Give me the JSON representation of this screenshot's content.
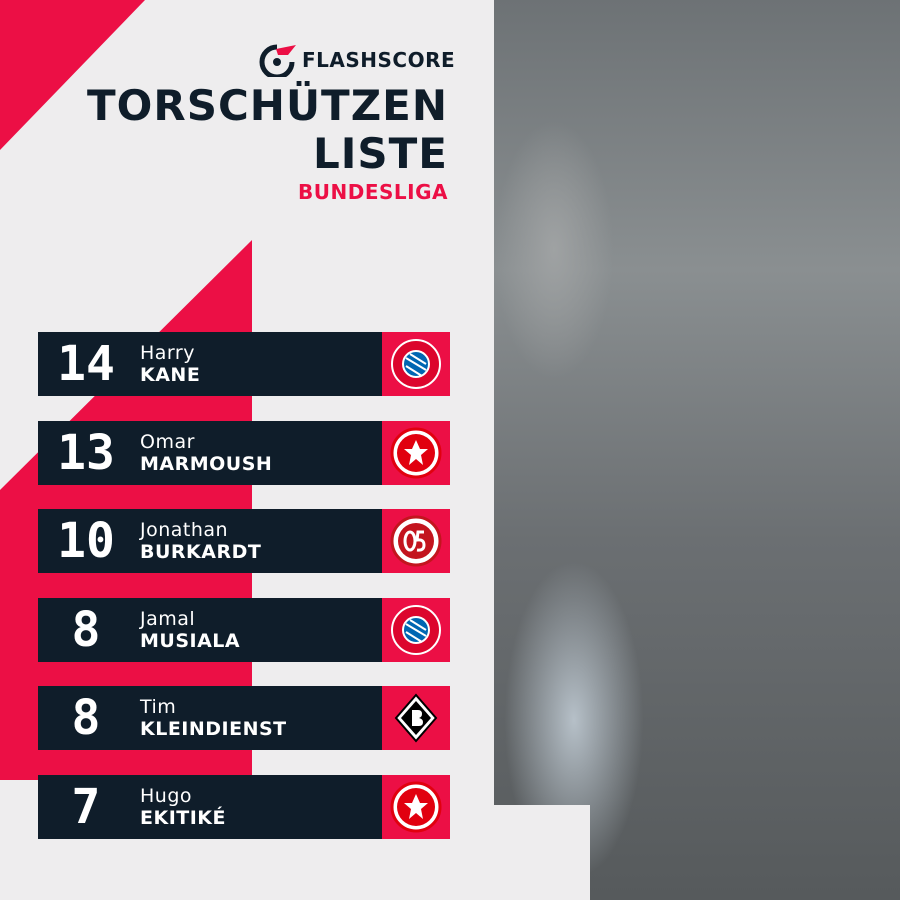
{
  "brand": {
    "name": "FLASHSCORE",
    "accent": "#ec0f45",
    "navy": "#0f1d2a"
  },
  "header": {
    "title_line1": "TORSCHÜTZEN",
    "title_line2": "LISTE",
    "subtitle": "BUNDESLIGA"
  },
  "scorers": [
    {
      "goals": "14",
      "first": "Harry",
      "last": "KANE",
      "club_icon": "bayern-munchen-crest-icon"
    },
    {
      "goals": "13",
      "first": "Omar",
      "last": "MARMOUSH",
      "club_icon": "eintracht-frankfurt-crest-icon"
    },
    {
      "goals": "10",
      "first": "Jonathan",
      "last": "BURKARDT",
      "club_icon": "mainz-05-crest-icon"
    },
    {
      "goals": "8",
      "first": "Jamal",
      "last": "MUSIALA",
      "club_icon": "bayern-munchen-crest-icon"
    },
    {
      "goals": "8",
      "first": "Tim",
      "last": "KLEINDIENST",
      "club_icon": "borussia-monchengladbach-crest-icon"
    },
    {
      "goals": "7",
      "first": "Hugo",
      "last": "EKITIKÉ",
      "club_icon": "eintracht-frankfurt-crest-icon"
    }
  ]
}
